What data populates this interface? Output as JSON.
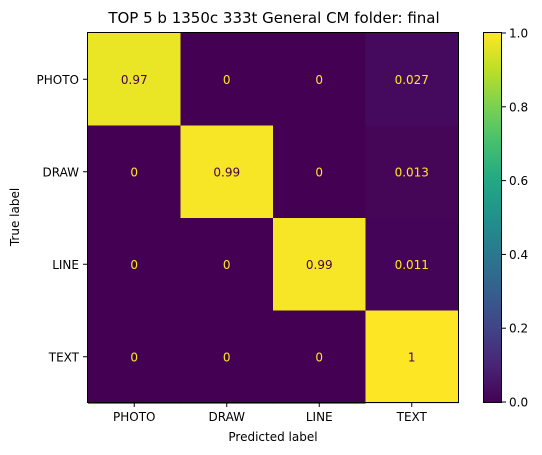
{
  "chart_data": {
    "type": "heatmap",
    "title": "TOP 5 b 1350c 333t  General CM folder: final",
    "xlabel": "Predicted label",
    "ylabel": "True label",
    "x_categories": [
      "PHOTO",
      "DRAW",
      "LINE",
      "TEXT"
    ],
    "y_categories": [
      "PHOTO",
      "DRAW",
      "LINE",
      "TEXT"
    ],
    "values": [
      [
        0.97,
        0,
        0,
        0.027
      ],
      [
        0,
        0.99,
        0,
        0.013
      ],
      [
        0,
        0,
        0.99,
        0.011
      ],
      [
        0,
        0,
        0,
        1
      ]
    ],
    "cell_labels": [
      [
        "0.97",
        "0",
        "0",
        "0.027"
      ],
      [
        "0",
        "0.99",
        "0",
        "0.013"
      ],
      [
        "0",
        "0",
        "0.99",
        "0.011"
      ],
      [
        "0",
        "0",
        "0",
        "1"
      ]
    ],
    "colorbar": {
      "range": [
        0,
        1
      ],
      "ticks": [
        "0.0",
        "0.2",
        "0.4",
        "0.6",
        "0.8",
        "1.0"
      ],
      "colormap": "viridis"
    },
    "colors": {
      "low_text": "#fde725",
      "high_text": "#440154"
    }
  }
}
